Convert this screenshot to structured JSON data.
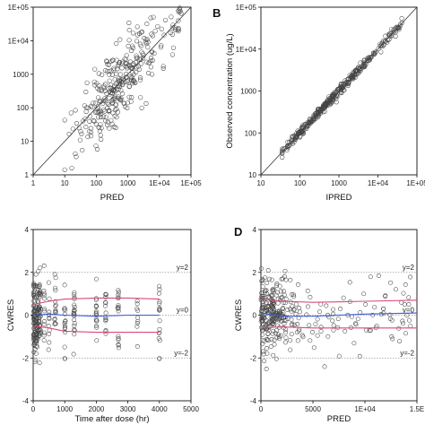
{
  "chart_data": [
    {
      "panel": "A",
      "panel_label": "",
      "type": "scatter",
      "xlabel": "PRED",
      "ylabel": "",
      "x_scale": "log",
      "y_scale": "log",
      "xlim": [
        1,
        100000
      ],
      "ylim": [
        1,
        100000
      ],
      "x_ticks": [
        "1",
        "10",
        "100",
        "1000",
        "1E+04",
        "1E+05"
      ],
      "y_ticks": [
        "1",
        "10",
        "100",
        "1000",
        "1E+04",
        "1E+05"
      ],
      "identity_line": true,
      "points_summary": {
        "n": 320,
        "x_range": [
          10,
          50000
        ],
        "trend": "y = x",
        "log_spread": 0.55
      }
    },
    {
      "panel": "B",
      "panel_label": "B",
      "type": "scatter",
      "xlabel": "IPRED",
      "ylabel": "Observed concentration (ug/L)",
      "x_scale": "log",
      "y_scale": "log",
      "xlim": [
        10,
        100000
      ],
      "ylim": [
        10,
        100000
      ],
      "x_ticks": [
        "10",
        "100",
        "1000",
        "1E+04",
        "1E+05"
      ],
      "y_ticks": [
        "10",
        "100",
        "1000",
        "1E+04",
        "1E+05"
      ],
      "identity_line": true,
      "points_summary": {
        "n": 380,
        "x_range": [
          35,
          45000
        ],
        "trend": "y = x",
        "log_spread": 0.05
      }
    },
    {
      "panel": "C",
      "panel_label": "",
      "type": "scatter",
      "xlabel": "Time after dose (hr)",
      "ylabel": "CWRES",
      "xlim": [
        0,
        5000
      ],
      "ylim": [
        -4,
        4
      ],
      "x_ticks": [
        "0",
        "1000",
        "2000",
        "3000",
        "4000",
        "5000"
      ],
      "y_ticks": [
        "-4",
        "-2",
        "0",
        "2",
        "4"
      ],
      "reference_lines": [
        {
          "y": 2,
          "label": "y=2"
        },
        {
          "y": 0,
          "label": "y=0"
        },
        {
          "y": -2,
          "label": "y=-2"
        }
      ],
      "smooth_lines": [
        {
          "color": "#d94a7a",
          "x": [
            0,
            500,
            1000,
            2000,
            3000,
            4000
          ],
          "y": [
            0.5,
            0.65,
            0.75,
            0.8,
            0.8,
            0.75
          ]
        },
        {
          "color": "#3a5bd9",
          "x": [
            0,
            500,
            1000,
            2000,
            3000,
            4000
          ],
          "y": [
            0.0,
            0.05,
            0.0,
            -0.05,
            0.0,
            0.0
          ]
        },
        {
          "color": "#d94a7a",
          "x": [
            0,
            500,
            1000,
            2000,
            3000,
            4000
          ],
          "y": [
            -0.5,
            -0.6,
            -0.75,
            -0.8,
            -0.8,
            -0.8
          ]
        }
      ],
      "time_columns": [
        0,
        100,
        200,
        350,
        500,
        700,
        1000,
        1300,
        2000,
        2300,
        2700,
        3300,
        4000
      ],
      "points_summary": {
        "n": 300,
        "y_sd": 0.85
      }
    },
    {
      "panel": "D",
      "panel_label": "D",
      "type": "scatter",
      "xlabel": "PRED",
      "ylabel": "CWRES",
      "xlim": [
        0,
        15000
      ],
      "ylim": [
        -4,
        4
      ],
      "x_ticks": [
        "0",
        "5000",
        "1E+04",
        "1.5E"
      ],
      "y_ticks": [
        "-4",
        "-2",
        "0",
        "2",
        "4"
      ],
      "reference_lines": [
        {
          "y": 2,
          "label": "y=2"
        },
        {
          "y": 0,
          "label": "y=0"
        },
        {
          "y": -2,
          "label": "y=-2"
        }
      ],
      "smooth_lines": [
        {
          "color": "#d94a7a",
          "x": [
            0,
            2000,
            5000,
            10000,
            15000
          ],
          "y": [
            0.75,
            0.65,
            0.6,
            0.65,
            0.7
          ]
        },
        {
          "color": "#3a5bd9",
          "x": [
            0,
            2000,
            5000,
            10000,
            15000
          ],
          "y": [
            0.1,
            -0.05,
            -0.05,
            0.05,
            0.1
          ]
        },
        {
          "color": "#d94a7a",
          "x": [
            0,
            2000,
            5000,
            10000,
            15000
          ],
          "y": [
            -0.6,
            -0.55,
            -0.6,
            -0.6,
            -0.6
          ]
        }
      ],
      "points_summary": {
        "n": 330,
        "x_skew": "dense near 0-2000",
        "y_sd": 0.8
      }
    }
  ]
}
